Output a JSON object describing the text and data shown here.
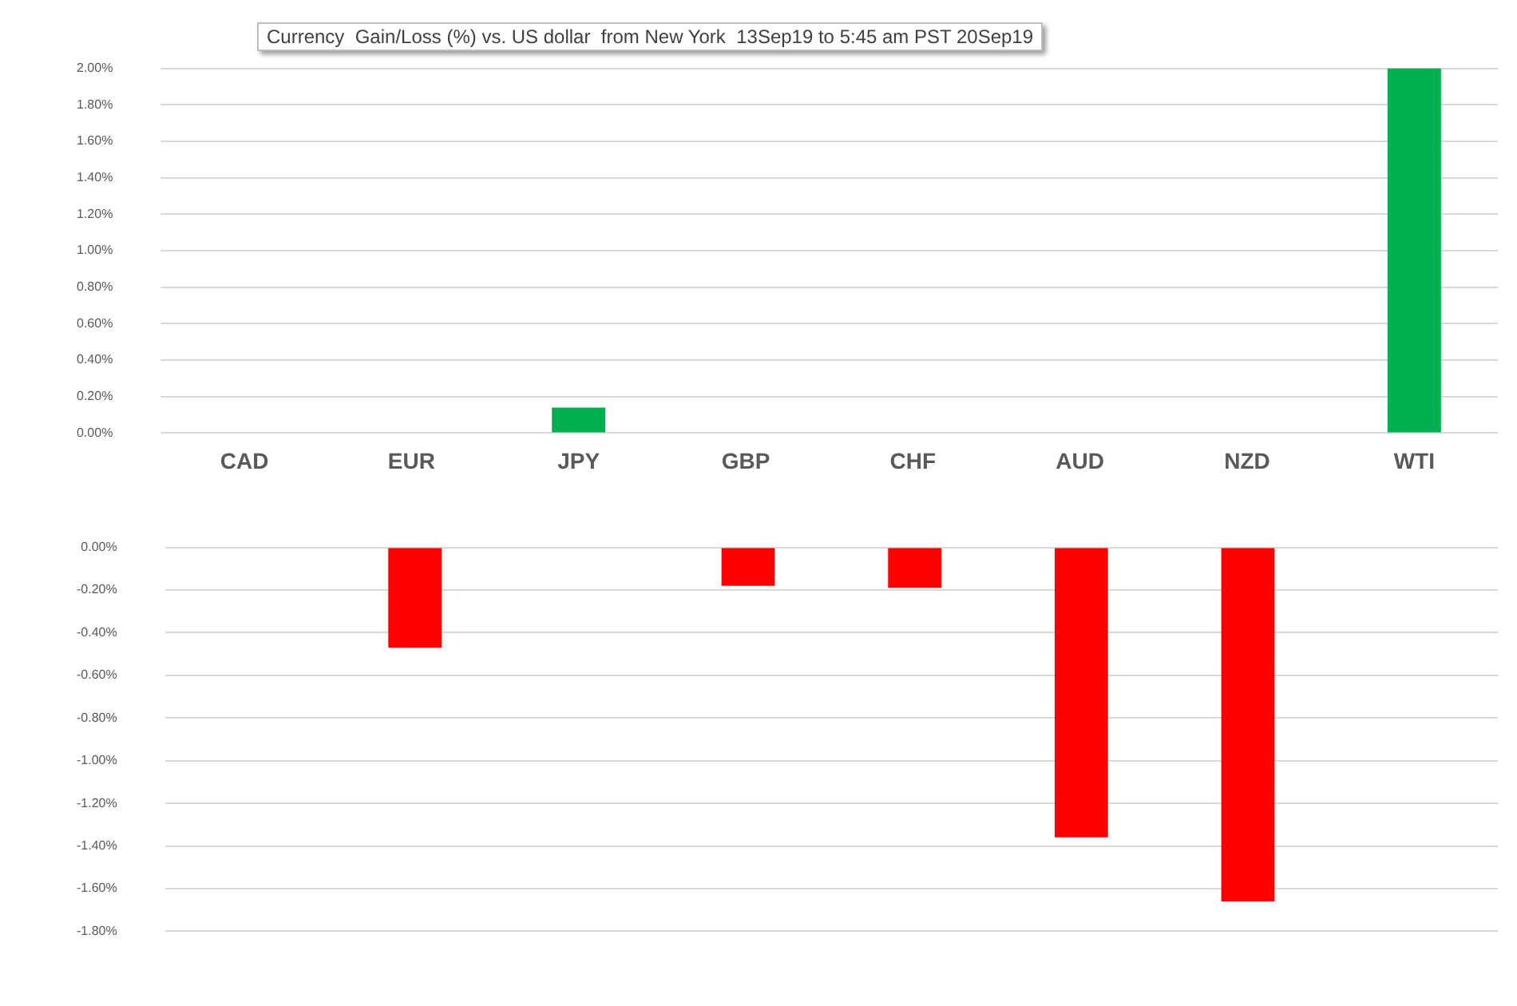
{
  "chart_data": [
    {
      "type": "bar",
      "title": "Currency  Gain/Loss (%) vs. US dollar  from New York  13Sep19 to 5:45 am PST 20Sep19",
      "categories": [
        "CAD",
        "EUR",
        "JPY",
        "GBP",
        "CHF",
        "AUD",
        "NZD",
        "WTI"
      ],
      "values": [
        null,
        null,
        0.14,
        null,
        null,
        null,
        null,
        2.0
      ],
      "color": "#00b050",
      "ylim": [
        0,
        2.0
      ],
      "yticks": [
        {
          "value": 0,
          "label": "0.00%"
        },
        {
          "value": 0.2,
          "label": "0.20%"
        },
        {
          "value": 0.4,
          "label": "0.40%"
        },
        {
          "value": 0.6,
          "label": "0.60%"
        },
        {
          "value": 0.8,
          "label": "0.80%"
        },
        {
          "value": 1.0,
          "label": "1.00%"
        },
        {
          "value": 1.2,
          "label": "1.20%"
        },
        {
          "value": 1.4,
          "label": "1.40%"
        },
        {
          "value": 1.6,
          "label": "1.60%"
        },
        {
          "value": 1.8,
          "label": "1.80%"
        },
        {
          "value": 2.0,
          "label": "2.00%"
        }
      ],
      "grid": "y"
    },
    {
      "type": "bar",
      "categories": [
        null,
        null,
        null,
        null,
        null,
        null,
        null,
        null
      ],
      "values": [
        null,
        -0.47,
        null,
        -0.18,
        -0.19,
        -1.36,
        -1.66,
        null
      ],
      "color": "#ff0000",
      "ylim": [
        -1.8,
        0
      ],
      "yticks": [
        {
          "value": 0,
          "label": "0.00%"
        },
        {
          "value": -0.2,
          "label": "-0.20%"
        },
        {
          "value": -0.4,
          "label": "-0.40%"
        },
        {
          "value": -0.6,
          "label": "-0.60%"
        },
        {
          "value": -0.8,
          "label": "-0.80%"
        },
        {
          "value": -1.0,
          "label": "-1.00%"
        },
        {
          "value": -1.2,
          "label": "-1.20%"
        },
        {
          "value": -1.4,
          "label": "-1.40%"
        },
        {
          "value": -1.6,
          "label": "-1.60%"
        },
        {
          "value": -1.8,
          "label": "-1.80%"
        }
      ],
      "grid": "y"
    }
  ]
}
